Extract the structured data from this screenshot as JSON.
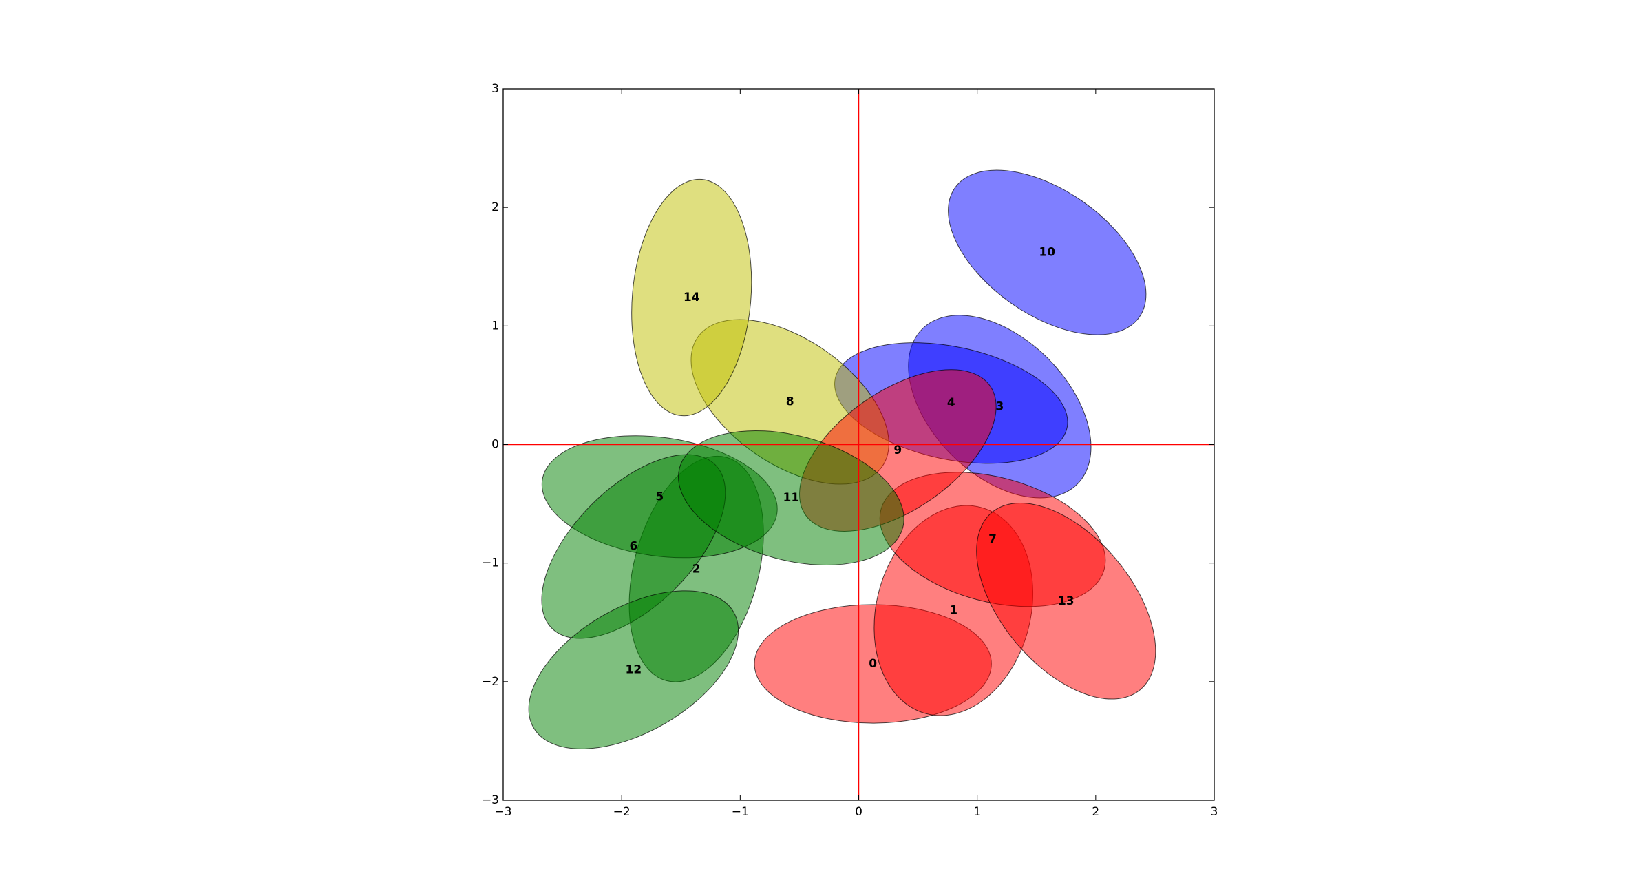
{
  "chart_data": {
    "type": "scatter",
    "title": "",
    "xlabel": "",
    "ylabel": "",
    "xlim": [
      -3,
      3
    ],
    "ylim": [
      -3,
      3
    ],
    "xticks": [
      -3,
      -2,
      -1,
      0,
      1,
      2,
      3
    ],
    "yticks": [
      -3,
      -2,
      -1,
      0,
      1,
      2,
      3
    ],
    "xtick_labels": [
      "−3",
      "−2",
      "−1",
      "0",
      "1",
      "2",
      "3"
    ],
    "ytick_labels": [
      "−3",
      "−2",
      "−1",
      "0",
      "1",
      "2",
      "3"
    ],
    "grid": false,
    "reference_lines": {
      "x": 0,
      "y": 0,
      "color": "#ff0000"
    },
    "colors": {
      "red": "#ff0000",
      "green": "#008000",
      "blue": "#0000ff",
      "yellow": "#bfbf00"
    },
    "ellipses": [
      {
        "label": "0",
        "cx": 0.12,
        "cy": -1.85,
        "width": 2.0,
        "height": 1.0,
        "angle": 0,
        "color": "red"
      },
      {
        "label": "1",
        "cx": 0.8,
        "cy": -1.4,
        "width": 1.8,
        "height": 1.3,
        "angle": 75,
        "color": "red"
      },
      {
        "label": "2",
        "cx": -1.37,
        "cy": -1.05,
        "width": 1.95,
        "height": 1.05,
        "angle": 75,
        "color": "green"
      },
      {
        "label": "3",
        "cx": 1.19,
        "cy": 0.32,
        "width": 1.85,
        "height": 1.15,
        "angle": -45,
        "color": "blue"
      },
      {
        "label": "4",
        "cx": 0.78,
        "cy": 0.35,
        "width": 2.0,
        "height": 0.95,
        "angle": -12,
        "color": "blue"
      },
      {
        "label": "5",
        "cx": -1.68,
        "cy": -0.44,
        "width": 2.0,
        "height": 1.0,
        "angle": -8,
        "color": "green"
      },
      {
        "label": "6",
        "cx": -1.9,
        "cy": -0.86,
        "width": 1.95,
        "height": 1.0,
        "angle": 45,
        "color": "green"
      },
      {
        "label": "7",
        "cx": 1.13,
        "cy": -0.8,
        "width": 1.95,
        "height": 1.05,
        "angle": -15,
        "color": "red"
      },
      {
        "label": "8",
        "cx": -0.58,
        "cy": 0.36,
        "width": 1.9,
        "height": 1.05,
        "angle": -35,
        "color": "yellow"
      },
      {
        "label": "9",
        "cx": 0.33,
        "cy": -0.05,
        "width": 1.9,
        "height": 1.0,
        "angle": 35,
        "color": "red"
      },
      {
        "label": "10",
        "cx": 1.59,
        "cy": 1.62,
        "width": 1.9,
        "height": 1.05,
        "angle": -35,
        "color": "blue"
      },
      {
        "label": "11",
        "cx": -0.57,
        "cy": -0.45,
        "width": 1.95,
        "height": 1.05,
        "angle": -15,
        "color": "green"
      },
      {
        "label": "12",
        "cx": -1.9,
        "cy": -1.9,
        "width": 1.95,
        "height": 1.05,
        "angle": 30,
        "color": "green"
      },
      {
        "label": "13",
        "cx": 1.75,
        "cy": -1.32,
        "width": 1.95,
        "height": 1.1,
        "angle": -50,
        "color": "red"
      },
      {
        "label": "14",
        "cx": -1.41,
        "cy": 1.24,
        "width": 2.0,
        "height": 1.0,
        "angle": 85,
        "color": "yellow"
      }
    ]
  }
}
